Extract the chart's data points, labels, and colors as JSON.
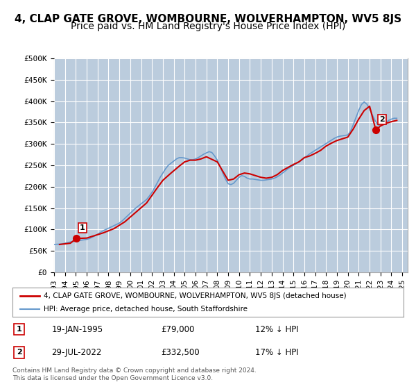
{
  "title": "4, CLAP GATE GROVE, WOMBOURNE, WOLVERHAMPTON, WV5 8JS",
  "subtitle": "Price paid vs. HM Land Registry's House Price Index (HPI)",
  "title_fontsize": 11,
  "subtitle_fontsize": 10,
  "background_color": "#ffffff",
  "plot_bg_color": "#ddeeff",
  "hatch_color": "#bbccdd",
  "grid_color": "#ffffff",
  "red_line_color": "#cc0000",
  "blue_line_color": "#6699cc",
  "marker_color": "#cc0000",
  "ylim": [
    0,
    500000
  ],
  "yticks": [
    0,
    50000,
    100000,
    150000,
    200000,
    250000,
    300000,
    350000,
    400000,
    450000,
    500000
  ],
  "ytick_labels": [
    "£0",
    "£50K",
    "£100K",
    "£150K",
    "£200K",
    "£250K",
    "£300K",
    "£350K",
    "£400K",
    "£450K",
    "£500K"
  ],
  "xlim_start": 1993.0,
  "xlim_end": 2025.5,
  "xtick_years": [
    1993,
    1994,
    1995,
    1996,
    1997,
    1998,
    1999,
    2000,
    2001,
    2002,
    2003,
    2004,
    2005,
    2006,
    2007,
    2008,
    2009,
    2010,
    2011,
    2012,
    2013,
    2014,
    2015,
    2016,
    2017,
    2018,
    2019,
    2020,
    2021,
    2022,
    2023,
    2024,
    2025
  ],
  "sale1_x": 1995.05,
  "sale1_y": 79000,
  "sale1_label": "1",
  "sale2_x": 2022.57,
  "sale2_y": 332500,
  "sale2_label": "2",
  "legend_line1": "4, CLAP GATE GROVE, WOMBOURNE, WOLVERHAMPTON, WV5 8JS (detached house)",
  "legend_line2": "HPI: Average price, detached house, South Staffordshire",
  "annotation1_date": "19-JAN-1995",
  "annotation1_price": "£79,000",
  "annotation1_hpi": "12% ↓ HPI",
  "annotation2_date": "29-JUL-2022",
  "annotation2_price": "£332,500",
  "annotation2_hpi": "17% ↓ HPI",
  "footnote": "Contains HM Land Registry data © Crown copyright and database right 2024.\nThis data is licensed under the Open Government Licence v3.0.",
  "hpi_data_x": [
    1993.0,
    1993.25,
    1993.5,
    1993.75,
    1994.0,
    1994.25,
    1994.5,
    1994.75,
    1995.0,
    1995.25,
    1995.5,
    1995.75,
    1996.0,
    1996.25,
    1996.5,
    1996.75,
    1997.0,
    1997.25,
    1997.5,
    1997.75,
    1998.0,
    1998.25,
    1998.5,
    1998.75,
    1999.0,
    1999.25,
    1999.5,
    1999.75,
    2000.0,
    2000.25,
    2000.5,
    2000.75,
    2001.0,
    2001.25,
    2001.5,
    2001.75,
    2002.0,
    2002.25,
    2002.5,
    2002.75,
    2003.0,
    2003.25,
    2003.5,
    2003.75,
    2004.0,
    2004.25,
    2004.5,
    2004.75,
    2005.0,
    2005.25,
    2005.5,
    2005.75,
    2006.0,
    2006.25,
    2006.5,
    2006.75,
    2007.0,
    2007.25,
    2007.5,
    2007.75,
    2008.0,
    2008.25,
    2008.5,
    2008.75,
    2009.0,
    2009.25,
    2009.5,
    2009.75,
    2010.0,
    2010.25,
    2010.5,
    2010.75,
    2011.0,
    2011.25,
    2011.5,
    2011.75,
    2012.0,
    2012.25,
    2012.5,
    2012.75,
    2013.0,
    2013.25,
    2013.5,
    2013.75,
    2014.0,
    2014.25,
    2014.5,
    2014.75,
    2015.0,
    2015.25,
    2015.5,
    2015.75,
    2016.0,
    2016.25,
    2016.5,
    2016.75,
    2017.0,
    2017.25,
    2017.5,
    2017.75,
    2018.0,
    2018.25,
    2018.5,
    2018.75,
    2019.0,
    2019.25,
    2019.5,
    2019.75,
    2020.0,
    2020.25,
    2020.5,
    2020.75,
    2021.0,
    2021.25,
    2021.5,
    2021.75,
    2022.0,
    2022.25,
    2022.5,
    2022.75,
    2023.0,
    2023.25,
    2023.5,
    2023.75,
    2024.0,
    2024.25,
    2024.5
  ],
  "hpi_data_y": [
    65000,
    65500,
    66000,
    66500,
    68000,
    69500,
    71000,
    72000,
    73000,
    74000,
    75000,
    76000,
    77000,
    79000,
    82000,
    85000,
    89000,
    93000,
    97000,
    100000,
    103000,
    106000,
    109000,
    112000,
    115000,
    120000,
    126000,
    132000,
    138000,
    144000,
    150000,
    155000,
    160000,
    165000,
    170000,
    178000,
    187000,
    198000,
    210000,
    222000,
    232000,
    242000,
    250000,
    255000,
    260000,
    265000,
    268000,
    268000,
    267000,
    265000,
    263000,
    263000,
    265000,
    268000,
    272000,
    276000,
    279000,
    282000,
    280000,
    272000,
    262000,
    248000,
    232000,
    218000,
    207000,
    205000,
    208000,
    215000,
    222000,
    226000,
    224000,
    220000,
    218000,
    218000,
    217000,
    216000,
    215000,
    215000,
    216000,
    217000,
    218000,
    220000,
    223000,
    227000,
    232000,
    237000,
    242000,
    246000,
    250000,
    254000,
    258000,
    262000,
    267000,
    272000,
    277000,
    281000,
    285000,
    289000,
    293000,
    297000,
    301000,
    305000,
    309000,
    313000,
    316000,
    318000,
    319000,
    320000,
    321000,
    330000,
    345000,
    362000,
    378000,
    392000,
    398000,
    393000,
    382000,
    368000,
    355000,
    345000,
    342000,
    345000,
    350000,
    355000,
    358000,
    360000,
    360000
  ],
  "price_data_x": [
    1993.5,
    1994.5,
    1995.05,
    1996.0,
    1997.5,
    1998.5,
    1999.5,
    2000.5,
    2001.5,
    2002.0,
    2002.5,
    2003.0,
    2003.75,
    2004.5,
    2005.0,
    2005.5,
    2006.0,
    2006.5,
    2007.0,
    2008.0,
    2009.0,
    2009.5,
    2010.0,
    2010.5,
    2011.0,
    2011.5,
    2012.0,
    2012.5,
    2013.0,
    2013.5,
    2014.0,
    2014.5,
    2015.0,
    2015.5,
    2016.0,
    2016.5,
    2017.0,
    2017.5,
    2018.0,
    2018.5,
    2019.0,
    2019.5,
    2020.0,
    2020.5,
    2021.0,
    2021.5,
    2022.0,
    2022.57,
    2023.0,
    2023.5,
    2024.0,
    2024.5
  ],
  "price_data_y": [
    65000,
    68000,
    79000,
    80000,
    92000,
    102000,
    118000,
    140000,
    162000,
    180000,
    198000,
    215000,
    232000,
    248000,
    258000,
    262000,
    262000,
    265000,
    270000,
    258000,
    215000,
    218000,
    228000,
    232000,
    230000,
    226000,
    222000,
    220000,
    222000,
    228000,
    238000,
    245000,
    252000,
    258000,
    268000,
    272000,
    278000,
    285000,
    295000,
    302000,
    308000,
    312000,
    316000,
    335000,
    358000,
    378000,
    388000,
    332500,
    342000,
    348000,
    352000,
    355000
  ]
}
